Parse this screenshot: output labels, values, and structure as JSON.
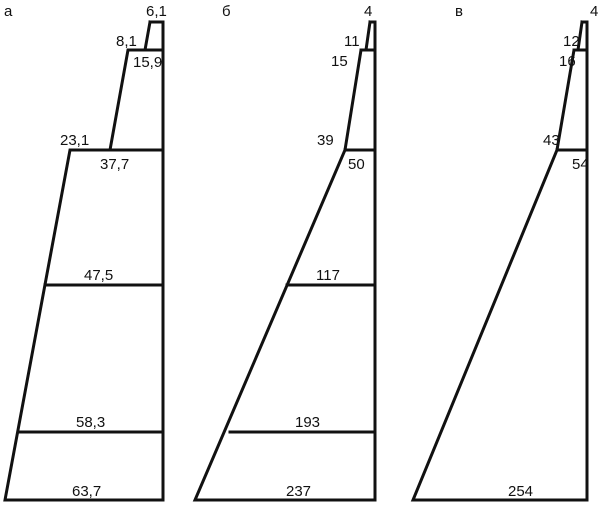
{
  "panels": [
    {
      "label": "а",
      "values": [
        "6,1",
        "8,1",
        "15,9",
        "23,1",
        "37,7",
        "47,5",
        "58,3",
        "63,7"
      ]
    },
    {
      "label": "б",
      "values": [
        "4",
        "11",
        "15",
        "39",
        "50",
        "117",
        "193",
        "237"
      ]
    },
    {
      "label": "в",
      "values": [
        "4",
        "12",
        "16",
        "43",
        "54",
        "254"
      ]
    }
  ]
}
